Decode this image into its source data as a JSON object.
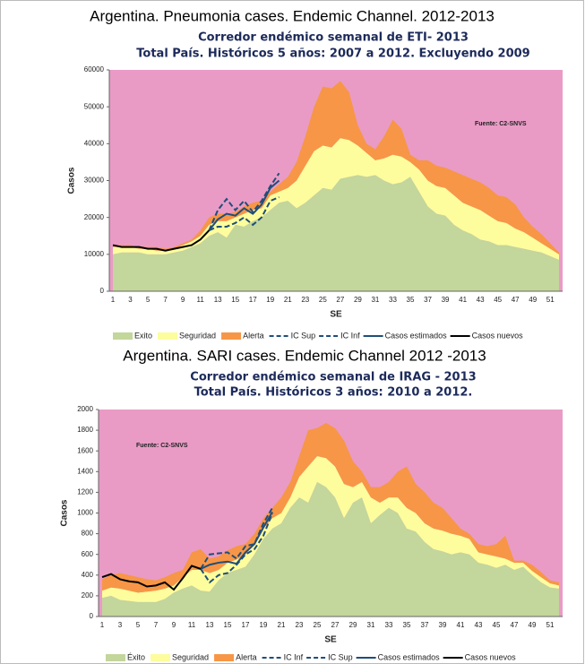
{
  "chart_data": [
    {
      "type": "area",
      "heading": "Argentina. Pneumonia  cases. Endemic Channel. 2012-2013",
      "title": "Corredor endémico semanal de ETI- 2013",
      "subtitle": "Total País. Históricos 5 años: 2007 a 2012. Excluyendo 2009",
      "annotation": "Fuente: C2-SNVS",
      "xlabel": "SE",
      "ylabel": "Casos",
      "categories": [
        1,
        null,
        3,
        null,
        5,
        null,
        7,
        null,
        9,
        null,
        11,
        null,
        13,
        null,
        15,
        null,
        17,
        null,
        19,
        null,
        21,
        null,
        23,
        null,
        25,
        null,
        27,
        null,
        29,
        null,
        31,
        null,
        33,
        null,
        35,
        null,
        37,
        null,
        39,
        null,
        41,
        null,
        43,
        null,
        45,
        null,
        47,
        null,
        49,
        null,
        51,
        null
      ],
      "ylim": [
        0,
        60000
      ],
      "yticks": [
        0,
        10000,
        20000,
        30000,
        40000,
        50000,
        60000
      ],
      "plot_background": "#e99bc6",
      "series": [
        {
          "name": "Exito",
          "color": "#c3d69b",
          "values": [
            10000,
            10500,
            10500,
            10500,
            10000,
            10000,
            10000,
            10500,
            11000,
            12000,
            13000,
            15000,
            16000,
            14500,
            18000,
            17500,
            19000,
            20000,
            22000,
            24000,
            24500,
            22500,
            24000,
            26000,
            28000,
            27500,
            30500,
            31000,
            31500,
            31000,
            31500,
            30000,
            29000,
            29500,
            31000,
            27000,
            23000,
            21000,
            20500,
            18000,
            16500,
            15500,
            14000,
            13500,
            12500,
            12500,
            12000,
            11500,
            11000,
            10500,
            9500,
            8500
          ]
        },
        {
          "name": "Seguridad",
          "color": "#fdfd9d",
          "values": [
            2000,
            1500,
            1500,
            1000,
            1500,
            1000,
            1000,
            1000,
            1500,
            1500,
            2000,
            3000,
            3000,
            4500,
            2000,
            3500,
            3000,
            2500,
            4000,
            3000,
            3500,
            7500,
            10000,
            12000,
            11500,
            11500,
            11000,
            10000,
            8000,
            6500,
            4000,
            6000,
            8000,
            7000,
            4000,
            6000,
            7000,
            7500,
            7500,
            8000,
            7500,
            7500,
            8000,
            7000,
            6500,
            6000,
            5000,
            4500,
            3500,
            2500,
            2000,
            1500
          ]
        },
        {
          "name": "Alerta",
          "color": "#f79646",
          "values": [
            500,
            500,
            500,
            500,
            500,
            1000,
            500,
            500,
            500,
            500,
            1500,
            2000,
            2000,
            2000,
            1500,
            2000,
            2000,
            2000,
            1000,
            2000,
            3000,
            5000,
            8000,
            12000,
            16000,
            16000,
            15500,
            13000,
            5500,
            2500,
            3000,
            6000,
            9500,
            7500,
            2000,
            2500,
            5500,
            5500,
            5500,
            6500,
            7500,
            7500,
            7500,
            7500,
            7000,
            7000,
            6500,
            4000,
            3000,
            2500,
            1500,
            500
          ]
        }
      ],
      "lines": [
        {
          "name": "IC Sup",
          "color": "#1f4e79",
          "dashed": true,
          "values": [
            null,
            null,
            null,
            null,
            null,
            null,
            null,
            null,
            null,
            null,
            null,
            16500,
            22000,
            25000,
            22000,
            24500,
            21500,
            24500,
            28500,
            32000,
            null,
            null,
            null,
            null,
            null,
            null,
            null,
            null,
            null,
            null,
            null,
            null,
            null,
            null,
            null,
            null,
            null,
            null,
            null,
            null,
            null,
            null,
            null,
            null,
            null,
            null,
            null,
            null,
            null,
            null,
            null,
            null
          ]
        },
        {
          "name": "IC Inf",
          "color": "#1f4e79",
          "dashed": true,
          "values": [
            null,
            null,
            null,
            null,
            null,
            null,
            null,
            null,
            null,
            null,
            null,
            16500,
            17500,
            17500,
            18500,
            20000,
            18000,
            20000,
            24500,
            25500,
            null,
            null,
            null,
            null,
            null,
            null,
            null,
            null,
            null,
            null,
            null,
            null,
            null,
            null,
            null,
            null,
            null,
            null,
            null,
            null,
            null,
            null,
            null,
            null,
            null,
            null,
            null,
            null,
            null,
            null,
            null,
            null
          ]
        },
        {
          "name": "Casos estimados",
          "color": "#1f4e79",
          "dashed": false,
          "values": [
            null,
            null,
            null,
            null,
            null,
            null,
            null,
            null,
            null,
            null,
            null,
            16500,
            19500,
            21000,
            20500,
            22500,
            21000,
            23500,
            28000,
            30000,
            null,
            null,
            null,
            null,
            null,
            null,
            null,
            null,
            null,
            null,
            null,
            null,
            null,
            null,
            null,
            null,
            null,
            null,
            null,
            null,
            null,
            null,
            null,
            null,
            null,
            null,
            null,
            null,
            null,
            null,
            null,
            null
          ]
        },
        {
          "name": "Casos nuevos",
          "color": "#000000",
          "dashed": false,
          "values": [
            12500,
            12000,
            12000,
            12000,
            11500,
            11500,
            11000,
            11500,
            12000,
            12500,
            14000,
            16500,
            null,
            null,
            null,
            null,
            null,
            null,
            null,
            null,
            null,
            null,
            null,
            null,
            null,
            null,
            null,
            null,
            null,
            null,
            null,
            null,
            null,
            null,
            null,
            null,
            null,
            null,
            null,
            null,
            null,
            null,
            null,
            null,
            null,
            null,
            null,
            null,
            null,
            null,
            null,
            null
          ]
        }
      ]
    },
    {
      "type": "area",
      "heading": "Argentina. SARI cases. Endemic Channel  2012 -2013",
      "title": "Corredor endémico semanal de IRAG - 2013",
      "subtitle": "Total País. Históricos 3 años: 2010 a 2012.",
      "annotation": "Fuente: C2-SNVS",
      "xlabel": "SE",
      "ylabel": "Casos",
      "categories": [
        1,
        null,
        3,
        null,
        5,
        null,
        7,
        null,
        9,
        null,
        11,
        null,
        13,
        null,
        15,
        null,
        17,
        null,
        19,
        null,
        21,
        null,
        23,
        null,
        25,
        null,
        27,
        null,
        29,
        null,
        31,
        null,
        33,
        null,
        35,
        null,
        37,
        null,
        39,
        null,
        41,
        null,
        43,
        null,
        45,
        null,
        47,
        null,
        49,
        null,
        51,
        null
      ],
      "ylim": [
        0,
        2000
      ],
      "yticks": [
        0,
        200,
        400,
        600,
        800,
        1000,
        1200,
        1400,
        1600,
        1800,
        2000
      ],
      "plot_background": "#e99bc6",
      "series": [
        {
          "name": "Éxito",
          "color": "#c3d69b",
          "values": [
            180,
            200,
            160,
            150,
            140,
            140,
            140,
            170,
            230,
            270,
            300,
            250,
            240,
            350,
            420,
            450,
            480,
            600,
            750,
            850,
            900,
            1050,
            1150,
            1100,
            1300,
            1250,
            1150,
            950,
            1100,
            1150,
            900,
            980,
            1050,
            1000,
            850,
            820,
            720,
            650,
            630,
            600,
            620,
            600,
            520,
            500,
            470,
            500,
            450,
            480,
            400,
            330,
            280,
            270
          ]
        },
        {
          "name": "Seguridad",
          "color": "#fdfd9d",
          "values": [
            70,
            80,
            110,
            100,
            90,
            100,
            110,
            100,
            70,
            110,
            150,
            200,
            180,
            100,
            100,
            100,
            120,
            100,
            100,
            100,
            100,
            100,
            200,
            350,
            250,
            280,
            300,
            330,
            150,
            150,
            250,
            120,
            100,
            150,
            200,
            180,
            180,
            200,
            200,
            200,
            160,
            150,
            100,
            100,
            110,
            60,
            70,
            40,
            40,
            50,
            40,
            30
          ]
        },
        {
          "name": "Alerta",
          "color": "#f79646",
          "values": [
            110,
            120,
            150,
            150,
            150,
            120,
            100,
            110,
            120,
            70,
            170,
            200,
            140,
            130,
            120,
            130,
            100,
            100,
            100,
            100,
            150,
            150,
            200,
            350,
            270,
            340,
            370,
            420,
            250,
            100,
            100,
            150,
            150,
            250,
            400,
            280,
            300,
            250,
            220,
            150,
            70,
            50,
            80,
            80,
            120,
            220,
            20,
            20,
            60,
            50,
            30,
            30
          ]
        }
      ],
      "lines": [
        {
          "name": "IC Inf",
          "color": "#1f4e79",
          "dashed": true,
          "values": [
            null,
            null,
            null,
            null,
            null,
            null,
            null,
            null,
            null,
            null,
            null,
            460,
            330,
            400,
            420,
            500,
            600,
            650,
            780,
            1000,
            null,
            null,
            null,
            null,
            null,
            null,
            null,
            null,
            null,
            null,
            null,
            null,
            null,
            null,
            null,
            null,
            null,
            null,
            null,
            null,
            null,
            null,
            null,
            null,
            null,
            null,
            null,
            null,
            null,
            null,
            null,
            null
          ]
        },
        {
          "name": "IC Sup",
          "color": "#1f4e79",
          "dashed": true,
          "values": [
            null,
            null,
            null,
            null,
            null,
            null,
            null,
            null,
            null,
            null,
            null,
            460,
            600,
            610,
            620,
            560,
            680,
            700,
            900,
            1050,
            null,
            null,
            null,
            null,
            null,
            null,
            null,
            null,
            null,
            null,
            null,
            null,
            null,
            null,
            null,
            null,
            null,
            null,
            null,
            null,
            null,
            null,
            null,
            null,
            null,
            null,
            null,
            null,
            null,
            null,
            null,
            null
          ]
        },
        {
          "name": "Casos estimados",
          "color": "#1f4e79",
          "dashed": false,
          "values": [
            null,
            null,
            null,
            null,
            null,
            null,
            null,
            null,
            null,
            null,
            null,
            460,
            500,
            520,
            530,
            510,
            620,
            700,
            860,
            1010,
            null,
            null,
            null,
            null,
            null,
            null,
            null,
            null,
            null,
            null,
            null,
            null,
            null,
            null,
            null,
            null,
            null,
            null,
            null,
            null,
            null,
            null,
            null,
            null,
            null,
            null,
            null,
            null,
            null,
            null,
            null,
            null
          ]
        },
        {
          "name": "Casos nuevos",
          "color": "#000000",
          "dashed": false,
          "values": [
            380,
            410,
            360,
            340,
            330,
            290,
            300,
            330,
            260,
            370,
            490,
            460,
            null,
            null,
            null,
            null,
            null,
            null,
            null,
            null,
            null,
            null,
            null,
            null,
            null,
            null,
            null,
            null,
            null,
            null,
            null,
            null,
            null,
            null,
            null,
            null,
            null,
            null,
            null,
            null,
            null,
            null,
            null,
            null,
            null,
            null,
            null,
            null,
            null,
            null,
            null,
            null
          ]
        }
      ]
    }
  ]
}
